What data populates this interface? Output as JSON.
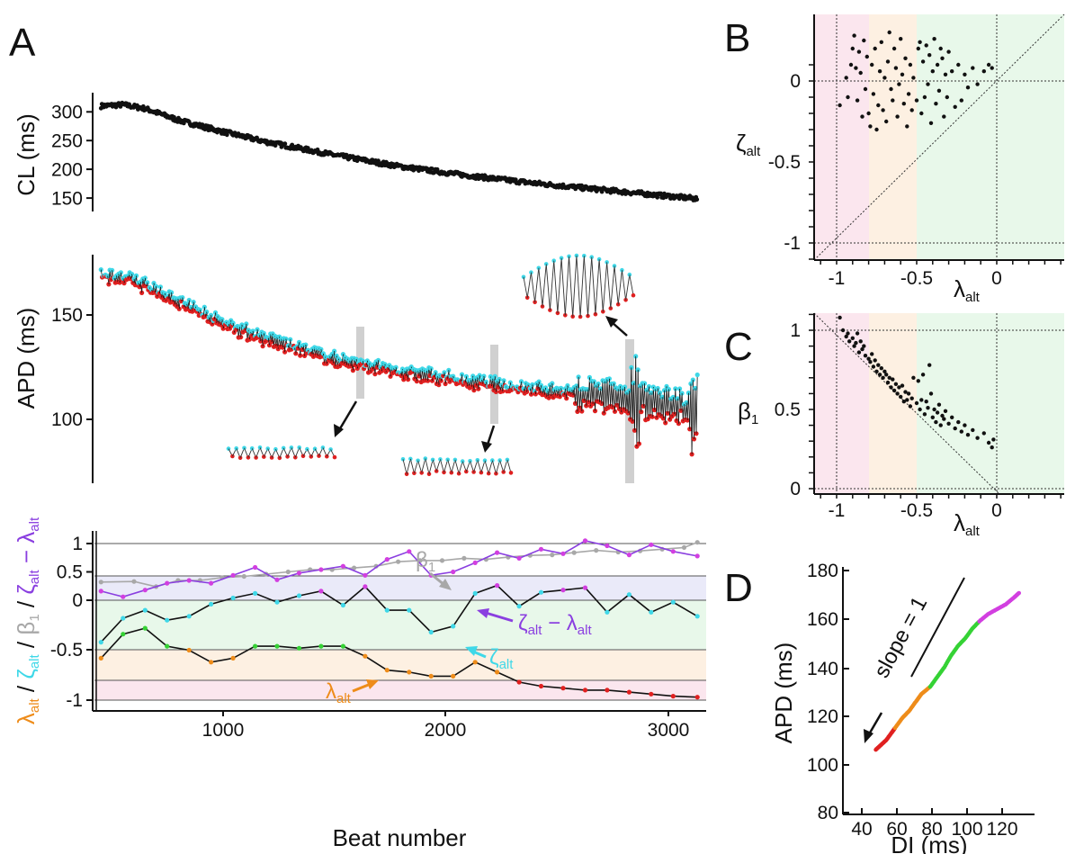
{
  "figure": {
    "panel_labels": [
      "A",
      "B",
      "C",
      "D"
    ]
  },
  "colors": {
    "black": "#111111",
    "cyan": "#3fd8e8",
    "red": "#e02020",
    "purple": "#8a3fe0",
    "magenta": "#d23fe0",
    "gray": "#a8a8a8",
    "orange": "#ee8c1a",
    "green": "#35d235",
    "zone_red": "#fbe6ee",
    "zone_orange": "#fdf0e2",
    "zone_green": "#e8f8ea",
    "zone_blue": "#eaeaf9",
    "shade_bar": "#d0d0d0"
  },
  "panelA": {
    "cl": {
      "ylabel": "CL (ms)",
      "yticks": [
        "300",
        "250",
        "200",
        "150"
      ]
    },
    "apd": {
      "ylabel": "APD (ms)",
      "yticks": [
        "150",
        "100"
      ]
    },
    "lower": {
      "ylabel_parts": [
        "λ",
        "alt",
        " / ",
        "ζ",
        "alt",
        " / ",
        "β",
        "1",
        " / ",
        "ζ",
        "alt",
        " − ",
        "λ",
        "alt"
      ],
      "yticks": [
        "1",
        "0.5",
        "0",
        "-0.5",
        "-1"
      ],
      "xticks": [
        "1000",
        "2000",
        "3000"
      ],
      "xlabel": "Beat number",
      "annotations": {
        "beta1": [
          "β",
          "1"
        ],
        "zeta_minus_lambda": [
          "ζ",
          "alt",
          " − ",
          "λ",
          "alt"
        ],
        "zeta": [
          "ζ",
          "alt"
        ],
        "lambda": [
          "λ",
          "alt"
        ]
      }
    }
  },
  "panelB": {
    "ylabel": [
      "ζ",
      "alt"
    ],
    "xlabel": [
      "λ",
      "alt"
    ],
    "yticks": [
      "0",
      "-0.5",
      "-1"
    ],
    "xticks": [
      "-1",
      "-0.5",
      "0"
    ]
  },
  "panelC": {
    "ylabel": [
      "β",
      "1"
    ],
    "xlabel": [
      "λ",
      "alt"
    ],
    "yticks": [
      "1",
      "0.5",
      "0"
    ],
    "xticks": [
      "-1",
      "-0.5",
      "0"
    ]
  },
  "panelD": {
    "ylabel": "APD (ms)",
    "xlabel": "DI (ms)",
    "yticks": [
      "180",
      "160",
      "140",
      "120",
      "100",
      "80"
    ],
    "xticks": [
      "40",
      "60",
      "80",
      "100",
      "120"
    ],
    "slope_label": "slope = 1"
  },
  "chart_data": [
    {
      "panel": "A-top",
      "type": "scatter",
      "xlabel": "",
      "ylabel": "CL (ms)",
      "xlim": [
        420,
        3200
      ],
      "ylim": [
        140,
        320
      ],
      "trend": {
        "x": [
          450,
          550,
          650,
          800,
          1000,
          1200,
          1500,
          1800,
          2100,
          2400,
          2700,
          3000,
          3160
        ],
        "y": [
          302,
          304,
          298,
          280,
          262,
          246,
          226,
          208,
          194,
          182,
          172,
          162,
          157
        ]
      }
    },
    {
      "panel": "A-middle",
      "type": "scatter",
      "xlabel": "",
      "ylabel": "APD (ms)",
      "xlim": [
        420,
        3200
      ],
      "ylim": [
        68,
        180
      ],
      "trend": {
        "x": [
          450,
          600,
          800,
          1000,
          1200,
          1500,
          1800,
          2100,
          2400,
          2700,
          2900,
          3160
        ],
        "y": [
          170,
          167,
          157,
          146,
          138,
          128,
          122,
          117,
          113,
          110,
          107,
          103
        ]
      },
      "series": [
        {
          "name": "",
          "color": "cyan"
        },
        {
          "name": "",
          "color": "red"
        }
      ]
    },
    {
      "panel": "A-bottom",
      "type": "line",
      "xlabel": "Beat number",
      "ylabel": "λalt / ζalt / β1 / ζalt − λalt",
      "xlim": [
        420,
        3200
      ],
      "ylim": [
        -1.08,
        1.1
      ],
      "hlines": [
        1,
        0.2,
        0,
        -0.5,
        -0.8,
        -1
      ],
      "series": [
        {
          "name": "β1",
          "x": [
            450,
            600,
            700,
            800,
            900,
            1000,
            1100,
            1200,
            1300,
            1400,
            1500,
            1600,
            1700,
            1800,
            1900,
            2000,
            2100,
            2200,
            2300,
            2400,
            2500,
            2600,
            2700,
            2800,
            2900,
            3000,
            3100,
            3160
          ],
          "values": [
            0.32,
            0.33,
            0.24,
            0.35,
            0.35,
            0.4,
            0.42,
            0.46,
            0.5,
            0.54,
            0.54,
            0.57,
            0.6,
            0.68,
            0.7,
            0.7,
            0.74,
            0.72,
            0.76,
            0.79,
            0.8,
            0.84,
            0.88,
            0.85,
            0.87,
            0.9,
            0.93,
            1.02
          ]
        },
        {
          "name": "ζalt − λalt",
          "x": [
            450,
            550,
            650,
            750,
            850,
            950,
            1050,
            1150,
            1250,
            1350,
            1450,
            1550,
            1650,
            1750,
            1850,
            1950,
            2050,
            2150,
            2250,
            2350,
            2450,
            2550,
            2650,
            2750,
            2850,
            2950,
            3050,
            3160
          ],
          "values": [
            0.16,
            0.06,
            0.18,
            0.3,
            0.35,
            0.3,
            0.44,
            0.58,
            0.36,
            0.48,
            0.54,
            0.6,
            0.44,
            0.72,
            0.86,
            0.44,
            0.5,
            0.66,
            0.84,
            0.74,
            0.9,
            0.82,
            1.05,
            0.96,
            0.8,
            0.98,
            0.86,
            0.78
          ]
        },
        {
          "name": "ζalt",
          "x": [
            450,
            550,
            650,
            750,
            850,
            950,
            1050,
            1150,
            1250,
            1350,
            1450,
            1550,
            1650,
            1750,
            1850,
            1950,
            2050,
            2150,
            2250,
            2350,
            2450,
            2550,
            2650,
            2750,
            2850,
            2950,
            3050,
            3160
          ],
          "values": [
            -0.42,
            -0.18,
            -0.1,
            -0.2,
            -0.16,
            -0.04,
            0.04,
            0.12,
            -0.02,
            0.08,
            0.16,
            -0.05,
            0.24,
            -0.1,
            -0.1,
            -0.32,
            -0.26,
            0.12,
            0.26,
            -0.06,
            0.14,
            0.18,
            0.22,
            -0.12,
            0.1,
            -0.12,
            -0.02,
            -0.16
          ]
        },
        {
          "name": "λalt",
          "x": [
            450,
            550,
            650,
            750,
            850,
            950,
            1050,
            1150,
            1250,
            1350,
            1450,
            1550,
            1650,
            1750,
            1850,
            1950,
            2050,
            2150,
            2250,
            2350,
            2450,
            2550,
            2650,
            2750,
            2850,
            2950,
            3050,
            3160
          ],
          "values": [
            -0.58,
            -0.34,
            -0.28,
            -0.46,
            -0.5,
            -0.62,
            -0.58,
            -0.46,
            -0.46,
            -0.48,
            -0.46,
            -0.46,
            -0.56,
            -0.7,
            -0.72,
            -0.76,
            -0.76,
            -0.62,
            -0.72,
            -0.82,
            -0.86,
            -0.88,
            -0.9,
            -0.9,
            -0.92,
            -0.94,
            -0.96,
            -0.97
          ]
        }
      ]
    },
    {
      "panel": "B",
      "type": "scatter",
      "xlabel": "λalt",
      "ylabel": "ζalt",
      "xlim": [
        -1.12,
        0.42
      ],
      "ylim": [
        -1.12,
        0.42
      ],
      "reference_lines": [
        "y = x",
        "x = -1",
        "x = 0",
        "y = 0",
        "y = -1"
      ],
      "x_zones": [
        {
          "from": -1.12,
          "to": -0.8,
          "color": "zone_red"
        },
        {
          "from": -0.8,
          "to": -0.5,
          "color": "zone_orange"
        },
        {
          "from": -0.5,
          "to": 0.42,
          "color": "zone_green"
        }
      ],
      "x": [
        -0.98,
        -0.94,
        -0.93,
        -0.91,
        -0.9,
        -0.89,
        -0.88,
        -0.87,
        -0.86,
        -0.85,
        -0.84,
        -0.83,
        -0.82,
        -0.81,
        -0.8,
        -0.79,
        -0.78,
        -0.77,
        -0.76,
        -0.75,
        -0.74,
        -0.73,
        -0.72,
        -0.71,
        -0.7,
        -0.69,
        -0.68,
        -0.67,
        -0.66,
        -0.65,
        -0.64,
        -0.63,
        -0.62,
        -0.61,
        -0.6,
        -0.59,
        -0.58,
        -0.57,
        -0.56,
        -0.55,
        -0.54,
        -0.53,
        -0.52,
        -0.5,
        -0.49,
        -0.48,
        -0.47,
        -0.46,
        -0.45,
        -0.44,
        -0.43,
        -0.42,
        -0.41,
        -0.4,
        -0.39,
        -0.38,
        -0.37,
        -0.36,
        -0.35,
        -0.34,
        -0.33,
        -0.32,
        -0.31,
        -0.3,
        -0.28,
        -0.26,
        -0.24,
        -0.22,
        -0.2,
        -0.18,
        -0.15,
        -0.12,
        -0.08,
        -0.05,
        -0.03
      ],
      "y": [
        -0.15,
        0.02,
        -0.1,
        0.1,
        0.2,
        0.28,
        0.08,
        -0.12,
        0.18,
        0.05,
        -0.22,
        0.25,
        -0.05,
        0.15,
        -0.2,
        -0.28,
        0.1,
        -0.08,
        0.2,
        -0.3,
        -0.15,
        0.06,
        0.24,
        -0.18,
        0.02,
        -0.25,
        0.12,
        0.3,
        -0.05,
        -0.12,
        0.2,
        0.08,
        -0.22,
        -0.02,
        0.26,
        0.04,
        -0.14,
        0.14,
        -0.28,
        -0.08,
        0.1,
        -0.18,
        0.02,
        -0.12,
        0.2,
        0.24,
        -0.2,
        0.12,
        -0.1,
        0.22,
        -0.02,
        0.16,
        -0.26,
        0.06,
        0.26,
        -0.14,
        0.1,
        -0.06,
        0.2,
        0.14,
        -0.22,
        0.04,
        -0.1,
        0.18,
        0.06,
        -0.16,
        0.1,
        -0.12,
        0.04,
        -0.04,
        0.08,
        -0.02,
        0.06,
        0.1,
        0.08
      ]
    },
    {
      "panel": "C",
      "type": "scatter",
      "xlabel": "λalt",
      "ylabel": "β1",
      "xlim": [
        -1.12,
        0.42
      ],
      "ylim": [
        -0.04,
        1.12
      ],
      "reference_lines": [
        "y = -x",
        "x = -1",
        "x = 0",
        "y = 0",
        "y = 1"
      ],
      "x_zones": [
        {
          "from": -1.12,
          "to": -0.8,
          "color": "zone_red"
        },
        {
          "from": -0.8,
          "to": -0.5,
          "color": "zone_orange"
        },
        {
          "from": -0.5,
          "to": 0.42,
          "color": "zone_green"
        }
      ],
      "x": [
        -0.98,
        -0.96,
        -0.94,
        -0.93,
        -0.92,
        -0.9,
        -0.89,
        -0.88,
        -0.87,
        -0.86,
        -0.85,
        -0.84,
        -0.83,
        -0.82,
        -0.8,
        -0.79,
        -0.78,
        -0.77,
        -0.76,
        -0.75,
        -0.74,
        -0.73,
        -0.72,
        -0.71,
        -0.7,
        -0.69,
        -0.68,
        -0.67,
        -0.66,
        -0.65,
        -0.64,
        -0.63,
        -0.62,
        -0.61,
        -0.6,
        -0.59,
        -0.58,
        -0.57,
        -0.56,
        -0.55,
        -0.54,
        -0.53,
        -0.52,
        -0.5,
        -0.49,
        -0.48,
        -0.47,
        -0.46,
        -0.45,
        -0.44,
        -0.43,
        -0.42,
        -0.41,
        -0.4,
        -0.39,
        -0.38,
        -0.37,
        -0.36,
        -0.35,
        -0.34,
        -0.33,
        -0.32,
        -0.3,
        -0.28,
        -0.26,
        -0.24,
        -0.22,
        -0.2,
        -0.18,
        -0.15,
        -0.12,
        -0.08,
        -0.05,
        -0.03,
        -0.02
      ],
      "y": [
        1.08,
        1.0,
        0.96,
        0.98,
        0.93,
        0.95,
        0.9,
        0.92,
        0.98,
        0.86,
        0.93,
        0.88,
        0.9,
        0.84,
        0.82,
        0.8,
        0.85,
        0.77,
        0.81,
        0.74,
        0.78,
        0.72,
        0.76,
        0.7,
        0.74,
        0.72,
        0.67,
        0.7,
        0.64,
        0.69,
        0.62,
        0.66,
        0.6,
        0.64,
        0.58,
        0.65,
        0.55,
        0.61,
        0.56,
        0.6,
        0.52,
        0.57,
        0.7,
        0.54,
        0.68,
        0.5,
        0.56,
        0.72,
        0.47,
        0.55,
        0.51,
        0.78,
        0.6,
        0.45,
        0.5,
        0.42,
        0.48,
        0.53,
        0.4,
        0.46,
        0.44,
        0.49,
        0.41,
        0.45,
        0.38,
        0.42,
        0.36,
        0.4,
        0.34,
        0.37,
        0.32,
        0.35,
        0.29,
        0.26,
        0.31
      ]
    },
    {
      "panel": "D",
      "type": "scatter",
      "xlabel": "DI (ms)",
      "ylabel": "APD (ms)",
      "xlim": [
        33,
        135
      ],
      "ylim": [
        78,
        182
      ],
      "segments": [
        {
          "color": "red",
          "x": [
            48,
            51,
            54,
            57,
            59
          ],
          "y": [
            106,
            108,
            110,
            113,
            115
          ]
        },
        {
          "color": "orange",
          "x": [
            59,
            63,
            67,
            71,
            74,
            79
          ],
          "y": [
            115,
            119,
            122,
            126,
            129,
            132
          ]
        },
        {
          "color": "green",
          "x": [
            79,
            83,
            87,
            91,
            95,
            99,
            103,
            107
          ],
          "y": [
            132,
            136,
            140,
            145,
            149,
            152,
            156,
            159
          ]
        },
        {
          "color": "magenta",
          "x": [
            107,
            112,
            117,
            122,
            127,
            130
          ],
          "y": [
            159,
            162,
            164,
            166,
            169,
            171
          ]
        }
      ]
    }
  ]
}
